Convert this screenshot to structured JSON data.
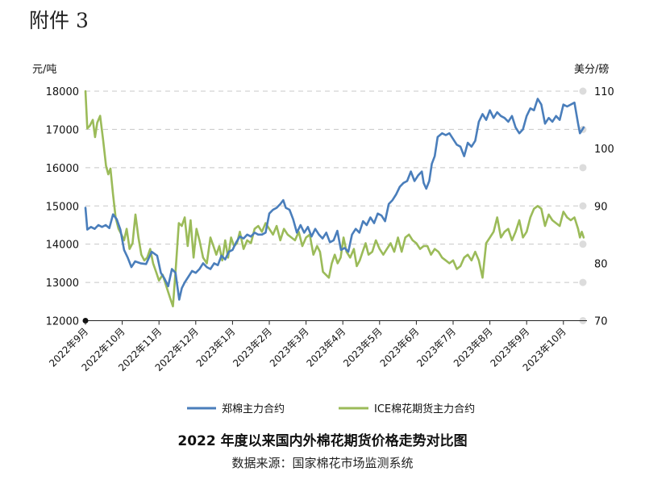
{
  "attachment_label": "附件 3",
  "chart_data": {
    "type": "line",
    "title": "2022 年度以来国内外棉花期货价格走势对比图",
    "source": "数据来源：国家棉花市场监测系统",
    "ylabel_left": "元/吨",
    "ylabel_right": "美分/磅",
    "ylim_left": [
      12000,
      18000
    ],
    "ylim_right": [
      70,
      110
    ],
    "yticks_left": [
      "12000",
      "13000",
      "14000",
      "15000",
      "16000",
      "17000",
      "18000"
    ],
    "yticks_right": [
      "70",
      "80",
      "90",
      "100",
      "110"
    ],
    "x_labels": [
      "2022年9月",
      "2022年10月",
      "2022年11月",
      "2022年12月",
      "2023年1月",
      "2023年2月",
      "2023年3月",
      "2023年4月",
      "2023年5月",
      "2023年6月",
      "2023年7月",
      "2023年8月",
      "2023年9月",
      "2023年10月"
    ],
    "grid": true,
    "legend_position": "bottom",
    "series": [
      {
        "name": "郑棉主力合约",
        "axis": "left",
        "color": "#4a7ebb",
        "points": [
          [
            0.0,
            14950
          ],
          [
            0.05,
            14380
          ],
          [
            0.15,
            14450
          ],
          [
            0.25,
            14400
          ],
          [
            0.35,
            14500
          ],
          [
            0.45,
            14450
          ],
          [
            0.55,
            14500
          ],
          [
            0.65,
            14420
          ],
          [
            0.75,
            14780
          ],
          [
            0.85,
            14650
          ],
          [
            0.95,
            14380
          ],
          [
            1.05,
            13850
          ],
          [
            1.15,
            13650
          ],
          [
            1.25,
            13400
          ],
          [
            1.35,
            13550
          ],
          [
            1.5,
            13500
          ],
          [
            1.65,
            13480
          ],
          [
            1.8,
            13800
          ],
          [
            1.95,
            13700
          ],
          [
            2.05,
            13250
          ],
          [
            2.15,
            13100
          ],
          [
            2.25,
            12900
          ],
          [
            2.35,
            13350
          ],
          [
            2.45,
            13250
          ],
          [
            2.55,
            12550
          ],
          [
            2.62,
            12850
          ],
          [
            2.7,
            13000
          ],
          [
            2.8,
            13150
          ],
          [
            2.9,
            13300
          ],
          [
            3.0,
            13250
          ],
          [
            3.1,
            13350
          ],
          [
            3.2,
            13500
          ],
          [
            3.3,
            13400
          ],
          [
            3.4,
            13350
          ],
          [
            3.5,
            13500
          ],
          [
            3.6,
            13450
          ],
          [
            3.7,
            13700
          ],
          [
            3.8,
            13600
          ],
          [
            3.9,
            13800
          ],
          [
            4.0,
            13850
          ],
          [
            4.1,
            14050
          ],
          [
            4.2,
            14200
          ],
          [
            4.3,
            14150
          ],
          [
            4.4,
            14250
          ],
          [
            4.5,
            14200
          ],
          [
            4.6,
            14300
          ],
          [
            4.7,
            14250
          ],
          [
            4.8,
            14250
          ],
          [
            4.9,
            14300
          ],
          [
            5.0,
            14800
          ],
          [
            5.1,
            14900
          ],
          [
            5.2,
            14950
          ],
          [
            5.3,
            15050
          ],
          [
            5.38,
            15150
          ],
          [
            5.45,
            14950
          ],
          [
            5.55,
            14900
          ],
          [
            5.65,
            14650
          ],
          [
            5.75,
            14300
          ],
          [
            5.85,
            14500
          ],
          [
            5.95,
            14300
          ],
          [
            6.05,
            14450
          ],
          [
            6.15,
            14200
          ],
          [
            6.25,
            14400
          ],
          [
            6.35,
            14250
          ],
          [
            6.45,
            14150
          ],
          [
            6.55,
            14300
          ],
          [
            6.65,
            14050
          ],
          [
            6.75,
            14100
          ],
          [
            6.85,
            14350
          ],
          [
            6.95,
            13850
          ],
          [
            7.05,
            13900
          ],
          [
            7.15,
            13800
          ],
          [
            7.25,
            14250
          ],
          [
            7.35,
            14400
          ],
          [
            7.45,
            14300
          ],
          [
            7.55,
            14600
          ],
          [
            7.65,
            14500
          ],
          [
            7.75,
            14700
          ],
          [
            7.85,
            14550
          ],
          [
            7.95,
            14800
          ],
          [
            8.05,
            14750
          ],
          [
            8.15,
            14600
          ],
          [
            8.25,
            15050
          ],
          [
            8.35,
            15150
          ],
          [
            8.45,
            15300
          ],
          [
            8.55,
            15500
          ],
          [
            8.65,
            15600
          ],
          [
            8.75,
            15650
          ],
          [
            8.85,
            15900
          ],
          [
            8.95,
            15650
          ],
          [
            9.05,
            15800
          ],
          [
            9.15,
            15900
          ],
          [
            9.2,
            15600
          ],
          [
            9.27,
            15450
          ],
          [
            9.35,
            15650
          ],
          [
            9.42,
            16100
          ],
          [
            9.5,
            16300
          ],
          [
            9.58,
            16800
          ],
          [
            9.7,
            16900
          ],
          [
            9.8,
            16850
          ],
          [
            9.9,
            16900
          ],
          [
            10.0,
            16750
          ],
          [
            10.1,
            16600
          ],
          [
            10.2,
            16550
          ],
          [
            10.3,
            16300
          ],
          [
            10.4,
            16650
          ],
          [
            10.5,
            16550
          ],
          [
            10.6,
            16700
          ],
          [
            10.7,
            17200
          ],
          [
            10.8,
            17400
          ],
          [
            10.9,
            17250
          ],
          [
            11.0,
            17500
          ],
          [
            11.1,
            17300
          ],
          [
            11.2,
            17450
          ],
          [
            11.3,
            17350
          ],
          [
            11.4,
            17300
          ],
          [
            11.5,
            17200
          ],
          [
            11.6,
            17350
          ],
          [
            11.7,
            17050
          ],
          [
            11.8,
            16900
          ],
          [
            11.9,
            17000
          ],
          [
            12.0,
            17350
          ],
          [
            12.1,
            17550
          ],
          [
            12.2,
            17500
          ],
          [
            12.3,
            17800
          ],
          [
            12.4,
            17650
          ],
          [
            12.5,
            17150
          ],
          [
            12.6,
            17300
          ],
          [
            12.7,
            17200
          ],
          [
            12.8,
            17350
          ],
          [
            12.9,
            17250
          ],
          [
            13.0,
            17650
          ],
          [
            13.1,
            17600
          ],
          [
            13.2,
            17650
          ],
          [
            13.3,
            17700
          ],
          [
            13.4,
            17150
          ],
          [
            13.45,
            16900
          ],
          [
            13.55,
            17050
          ]
        ]
      },
      {
        "name": "ICE棉花期货主力合约",
        "axis": "right",
        "color": "#9bbb59",
        "points": [
          [
            0.0,
            110.0
          ],
          [
            0.05,
            103.5
          ],
          [
            0.12,
            104.0
          ],
          [
            0.2,
            105.0
          ],
          [
            0.26,
            102.0
          ],
          [
            0.32,
            104.5
          ],
          [
            0.4,
            105.7
          ],
          [
            0.48,
            101.5
          ],
          [
            0.56,
            97.0
          ],
          [
            0.62,
            95.5
          ],
          [
            0.68,
            96.5
          ],
          [
            0.75,
            92.0
          ],
          [
            0.82,
            88.0
          ],
          [
            0.9,
            86.0
          ],
          [
            0.98,
            85.0
          ],
          [
            1.05,
            84.0
          ],
          [
            1.12,
            86.0
          ],
          [
            1.2,
            82.5
          ],
          [
            1.28,
            83.5
          ],
          [
            1.36,
            88.5
          ],
          [
            1.44,
            84.5
          ],
          [
            1.52,
            81.5
          ],
          [
            1.6,
            80.5
          ],
          [
            1.68,
            81.0
          ],
          [
            1.76,
            82.5
          ],
          [
            1.84,
            80.0
          ],
          [
            1.92,
            78.5
          ],
          [
            2.0,
            77.0
          ],
          [
            2.1,
            78.0
          ],
          [
            2.2,
            76.0
          ],
          [
            2.3,
            74.0
          ],
          [
            2.38,
            72.5
          ],
          [
            2.46,
            79.5
          ],
          [
            2.54,
            87.0
          ],
          [
            2.62,
            86.5
          ],
          [
            2.7,
            88.0
          ],
          [
            2.78,
            83.0
          ],
          [
            2.86,
            87.5
          ],
          [
            2.94,
            81.0
          ],
          [
            3.02,
            86.0
          ],
          [
            3.1,
            84.0
          ],
          [
            3.2,
            81.0
          ],
          [
            3.3,
            80.0
          ],
          [
            3.4,
            84.5
          ],
          [
            3.48,
            83.0
          ],
          [
            3.56,
            81.5
          ],
          [
            3.64,
            83.0
          ],
          [
            3.72,
            80.5
          ],
          [
            3.8,
            84.0
          ],
          [
            3.88,
            81.0
          ],
          [
            3.96,
            84.5
          ],
          [
            4.04,
            83.0
          ],
          [
            4.12,
            83.5
          ],
          [
            4.2,
            85.5
          ],
          [
            4.3,
            82.5
          ],
          [
            4.4,
            84.0
          ],
          [
            4.5,
            83.5
          ],
          [
            4.6,
            86.0
          ],
          [
            4.7,
            86.5
          ],
          [
            4.8,
            85.5
          ],
          [
            4.9,
            87.0
          ],
          [
            5.0,
            86.0
          ],
          [
            5.1,
            85.0
          ],
          [
            5.2,
            86.5
          ],
          [
            5.3,
            84.0
          ],
          [
            5.4,
            86.0
          ],
          [
            5.5,
            85.0
          ],
          [
            5.6,
            84.5
          ],
          [
            5.7,
            84.0
          ],
          [
            5.8,
            85.5
          ],
          [
            5.9,
            83.0
          ],
          [
            6.0,
            84.5
          ],
          [
            6.1,
            85.0
          ],
          [
            6.2,
            81.5
          ],
          [
            6.3,
            83.0
          ],
          [
            6.38,
            82.0
          ],
          [
            6.46,
            78.5
          ],
          [
            6.54,
            78.0
          ],
          [
            6.62,
            77.5
          ],
          [
            6.7,
            80.0
          ],
          [
            6.78,
            81.5
          ],
          [
            6.86,
            80.0
          ],
          [
            6.94,
            81.0
          ],
          [
            7.02,
            84.5
          ],
          [
            7.1,
            82.0
          ],
          [
            7.2,
            81.0
          ],
          [
            7.3,
            82.5
          ],
          [
            7.38,
            79.5
          ],
          [
            7.46,
            80.5
          ],
          [
            7.54,
            82.0
          ],
          [
            7.62,
            83.5
          ],
          [
            7.7,
            81.5
          ],
          [
            7.8,
            82.0
          ],
          [
            7.9,
            84.0
          ],
          [
            8.0,
            82.5
          ],
          [
            8.1,
            81.5
          ],
          [
            8.2,
            82.5
          ],
          [
            8.3,
            83.5
          ],
          [
            8.4,
            82.0
          ],
          [
            8.5,
            84.5
          ],
          [
            8.6,
            82.0
          ],
          [
            8.7,
            84.5
          ],
          [
            8.8,
            85.0
          ],
          [
            8.9,
            84.0
          ],
          [
            9.0,
            83.5
          ],
          [
            9.1,
            82.5
          ],
          [
            9.2,
            83.0
          ],
          [
            9.3,
            83.0
          ],
          [
            9.4,
            81.5
          ],
          [
            9.5,
            82.5
          ],
          [
            9.6,
            82.0
          ],
          [
            9.7,
            81.0
          ],
          [
            9.8,
            80.5
          ],
          [
            9.9,
            80.0
          ],
          [
            10.0,
            80.5
          ],
          [
            10.1,
            79.0
          ],
          [
            10.2,
            79.5
          ],
          [
            10.3,
            81.0
          ],
          [
            10.4,
            81.5
          ],
          [
            10.5,
            80.5
          ],
          [
            10.6,
            82.0
          ],
          [
            10.7,
            80.5
          ],
          [
            10.8,
            77.5
          ],
          [
            10.9,
            83.5
          ],
          [
            11.0,
            84.5
          ],
          [
            11.1,
            85.5
          ],
          [
            11.2,
            88.0
          ],
          [
            11.3,
            84.5
          ],
          [
            11.4,
            85.5
          ],
          [
            11.5,
            86.0
          ],
          [
            11.6,
            84.0
          ],
          [
            11.7,
            85.5
          ],
          [
            11.8,
            87.5
          ],
          [
            11.9,
            84.5
          ],
          [
            12.0,
            85.5
          ],
          [
            12.1,
            88.0
          ],
          [
            12.2,
            89.5
          ],
          [
            12.3,
            90.0
          ],
          [
            12.4,
            89.5
          ],
          [
            12.5,
            86.5
          ],
          [
            12.6,
            88.5
          ],
          [
            12.7,
            87.5
          ],
          [
            12.8,
            87.0
          ],
          [
            12.9,
            86.5
          ],
          [
            13.0,
            89.0
          ],
          [
            13.1,
            88.0
          ],
          [
            13.2,
            87.5
          ],
          [
            13.3,
            88.0
          ],
          [
            13.4,
            86.0
          ],
          [
            13.45,
            84.5
          ],
          [
            13.5,
            85.5
          ],
          [
            13.55,
            84.5
          ]
        ]
      }
    ]
  }
}
